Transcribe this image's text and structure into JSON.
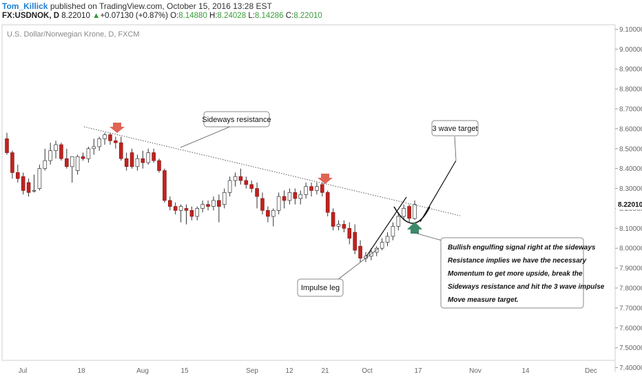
{
  "header": {
    "author": "Tom_Killick",
    "published_text": "published on TradingView.com, October 15, 2016 13:28 EST",
    "symbol": "FX:USDNOK, D",
    "price": "8.22010",
    "change_arrow": "▲",
    "change": "+0.07130 (+0.87%)",
    "o_label": "O:",
    "o_value": "8.14880",
    "h_label": "H:",
    "h_value": "8.24028",
    "l_label": "L:",
    "l_value": "8.14286",
    "c_label": "C:",
    "c_value": "8.22010"
  },
  "chart_data": {
    "type": "candlestick",
    "title": "U.S. Dollar/Norwegian Krone, D, FXCM",
    "ylim": [
      7.35,
      9.15
    ],
    "yticks": [
      "9.10000",
      "9.00000",
      "8.90000",
      "8.80000",
      "8.70000",
      "8.60000",
      "8.50000",
      "8.40000",
      "8.30000",
      "8.20000",
      "8.10000",
      "8.00000",
      "7.90000",
      "7.80000",
      "7.70000",
      "7.60000",
      "7.50000",
      "7.40000"
    ],
    "last_price_label": "8.22010",
    "xticks": [
      "Jul",
      "18",
      "Aug",
      "15",
      "Sep",
      "12",
      "21",
      "Oct",
      "17",
      "Nov",
      "14",
      "Dec"
    ],
    "bull_color": "#ffffff",
    "bear_color": "#c0231f",
    "candles": [
      [
        8.55,
        8.58,
        8.48,
        8.47
      ],
      [
        8.48,
        8.49,
        8.38,
        8.35
      ],
      [
        8.38,
        8.42,
        8.35,
        8.33
      ],
      [
        8.36,
        8.38,
        8.29,
        8.27
      ],
      [
        8.33,
        8.35,
        8.28,
        8.26
      ],
      [
        8.29,
        8.37,
        8.29,
        8.28
      ],
      [
        8.3,
        8.42,
        8.4,
        8.29
      ],
      [
        8.4,
        8.5,
        8.44,
        8.39
      ],
      [
        8.44,
        8.53,
        8.49,
        8.42
      ],
      [
        8.49,
        8.54,
        8.52,
        8.45
      ],
      [
        8.52,
        8.53,
        8.45,
        8.44
      ],
      [
        8.45,
        8.5,
        8.41,
        8.4
      ],
      [
        8.41,
        8.45,
        8.46,
        8.33
      ],
      [
        8.39,
        8.47,
        8.46,
        8.37
      ],
      [
        8.46,
        8.48,
        8.45,
        8.44
      ],
      [
        8.45,
        8.51,
        8.5,
        8.43
      ],
      [
        8.5,
        8.55,
        8.51,
        8.47
      ],
      [
        8.51,
        8.56,
        8.55,
        8.49
      ],
      [
        8.55,
        8.58,
        8.57,
        8.52
      ],
      [
        8.57,
        8.58,
        8.54,
        8.52
      ],
      [
        8.54,
        8.56,
        8.53,
        8.5
      ],
      [
        8.53,
        8.56,
        8.45,
        8.44
      ],
      [
        8.45,
        8.48,
        8.41,
        8.39
      ],
      [
        8.48,
        8.5,
        8.41,
        8.4
      ],
      [
        8.41,
        8.47,
        8.45,
        8.39
      ],
      [
        8.45,
        8.49,
        8.43,
        8.4
      ],
      [
        8.43,
        8.5,
        8.48,
        8.42
      ],
      [
        8.48,
        8.5,
        8.44,
        8.43
      ],
      [
        8.44,
        8.45,
        8.39,
        8.38
      ],
      [
        8.39,
        8.4,
        8.24,
        8.23
      ],
      [
        8.24,
        8.26,
        8.21,
        8.19
      ],
      [
        8.21,
        8.23,
        8.19,
        8.17
      ],
      [
        8.19,
        8.22,
        8.21,
        8.13
      ],
      [
        8.2,
        8.22,
        8.19,
        8.12
      ],
      [
        8.19,
        8.21,
        8.16,
        8.14
      ],
      [
        8.16,
        8.21,
        8.2,
        8.14
      ],
      [
        8.2,
        8.24,
        8.22,
        8.18
      ],
      [
        8.22,
        8.24,
        8.21,
        8.19
      ],
      [
        8.21,
        8.26,
        8.24,
        8.19
      ],
      [
        8.24,
        8.27,
        8.21,
        8.13
      ],
      [
        8.22,
        8.3,
        8.28,
        8.2
      ],
      [
        8.28,
        8.36,
        8.34,
        8.26
      ],
      [
        8.34,
        8.38,
        8.36,
        8.31
      ],
      [
        8.36,
        8.4,
        8.34,
        8.32
      ],
      [
        8.34,
        8.36,
        8.32,
        8.3
      ],
      [
        8.32,
        8.34,
        8.3,
        8.28
      ],
      [
        8.3,
        8.33,
        8.26,
        8.2
      ],
      [
        8.25,
        8.28,
        8.19,
        8.17
      ],
      [
        8.19,
        8.21,
        8.16,
        8.13
      ],
      [
        8.16,
        8.2,
        8.19,
        8.11
      ],
      [
        8.19,
        8.28,
        8.26,
        8.17
      ],
      [
        8.26,
        8.29,
        8.24,
        8.2
      ],
      [
        8.24,
        8.3,
        8.28,
        8.22
      ],
      [
        8.28,
        8.3,
        8.25,
        8.22
      ],
      [
        8.25,
        8.29,
        8.27,
        8.22
      ],
      [
        8.27,
        8.33,
        8.31,
        8.25
      ],
      [
        8.31,
        8.33,
        8.29,
        8.26
      ],
      [
        8.29,
        8.33,
        8.31,
        8.27
      ],
      [
        8.32,
        8.33,
        8.28,
        8.26
      ],
      [
        8.28,
        8.29,
        8.18,
        8.16
      ],
      [
        8.18,
        8.2,
        8.11,
        8.09
      ],
      [
        8.11,
        8.14,
        8.12,
        8.09
      ],
      [
        8.12,
        8.14,
        8.1,
        8.08
      ],
      [
        8.1,
        8.13,
        8.05,
        8.02
      ],
      [
        8.08,
        8.12,
        7.99,
        7.97
      ],
      [
        8.01,
        8.04,
        7.95,
        7.93
      ],
      [
        7.95,
        7.98,
        7.96,
        7.93
      ],
      [
        7.96,
        8.0,
        7.98,
        7.94
      ],
      [
        7.98,
        8.01,
        8.0,
        7.96
      ],
      [
        8.0,
        8.05,
        8.03,
        7.99
      ],
      [
        8.03,
        8.08,
        8.06,
        8.01
      ],
      [
        8.06,
        8.13,
        8.11,
        8.04
      ],
      [
        8.11,
        8.18,
        8.16,
        8.09
      ],
      [
        8.16,
        8.22,
        8.2,
        8.14
      ],
      [
        8.21,
        8.22,
        8.15,
        8.13
      ],
      [
        8.149,
        8.24,
        8.22,
        8.143
      ]
    ],
    "annotations": {
      "resistance": "Sideways resistance",
      "target": "3 wave target",
      "impulse": "Impulse leg",
      "note_lines": [
        "Bullish engulfing signal right at the sideways",
        "Resistance implies we have the necessary",
        "Momentum to get more upside, break the",
        "Sideways resistance and hit the 3 wave impulse",
        "Move measure target."
      ]
    }
  }
}
